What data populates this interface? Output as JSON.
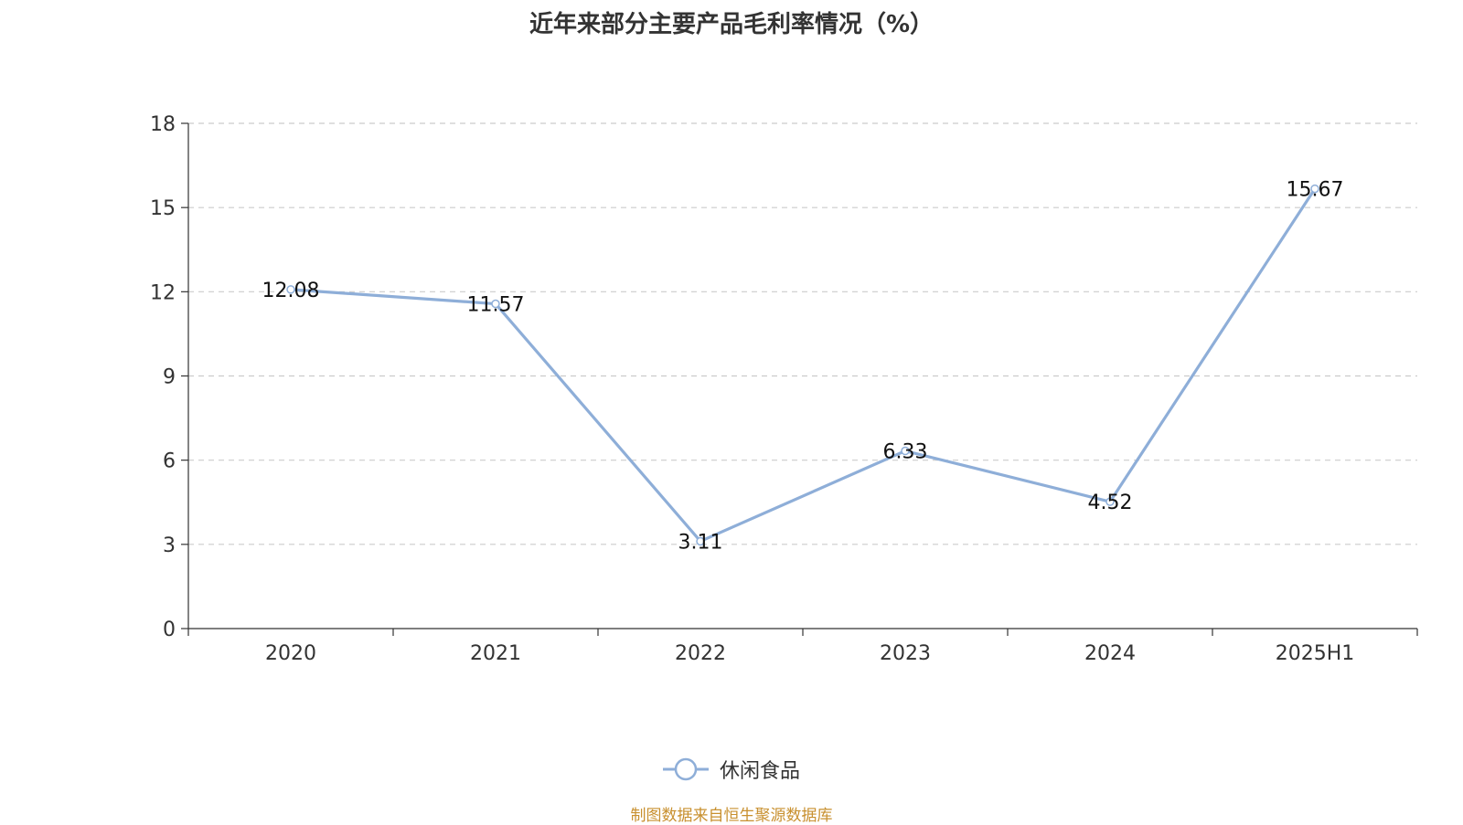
{
  "chart_data": {
    "type": "line",
    "title": "近年来部分主要产品毛利率情况（%）",
    "categories": [
      "2020",
      "2021",
      "2022",
      "2023",
      "2024",
      "2025H1"
    ],
    "series": [
      {
        "name": "休闲食品",
        "values": [
          12.08,
          11.57,
          3.11,
          6.33,
          4.52,
          15.67
        ],
        "labels": [
          "12.08",
          "11.57",
          "3.11",
          "6.33",
          "4.52",
          "15.67"
        ],
        "color": "#8eaed8"
      }
    ],
    "y_ticks": [
      "0",
      "3",
      "6",
      "9",
      "12",
      "15",
      "18"
    ],
    "ylim": [
      0,
      18
    ],
    "grid": true,
    "legend_position": "bottom"
  },
  "source_note": "制图数据来自恒生聚源数据库",
  "colors": {
    "line": "#8eaed8",
    "grid": "#cccccc",
    "axis": "#333333",
    "source": "#c8902f"
  }
}
